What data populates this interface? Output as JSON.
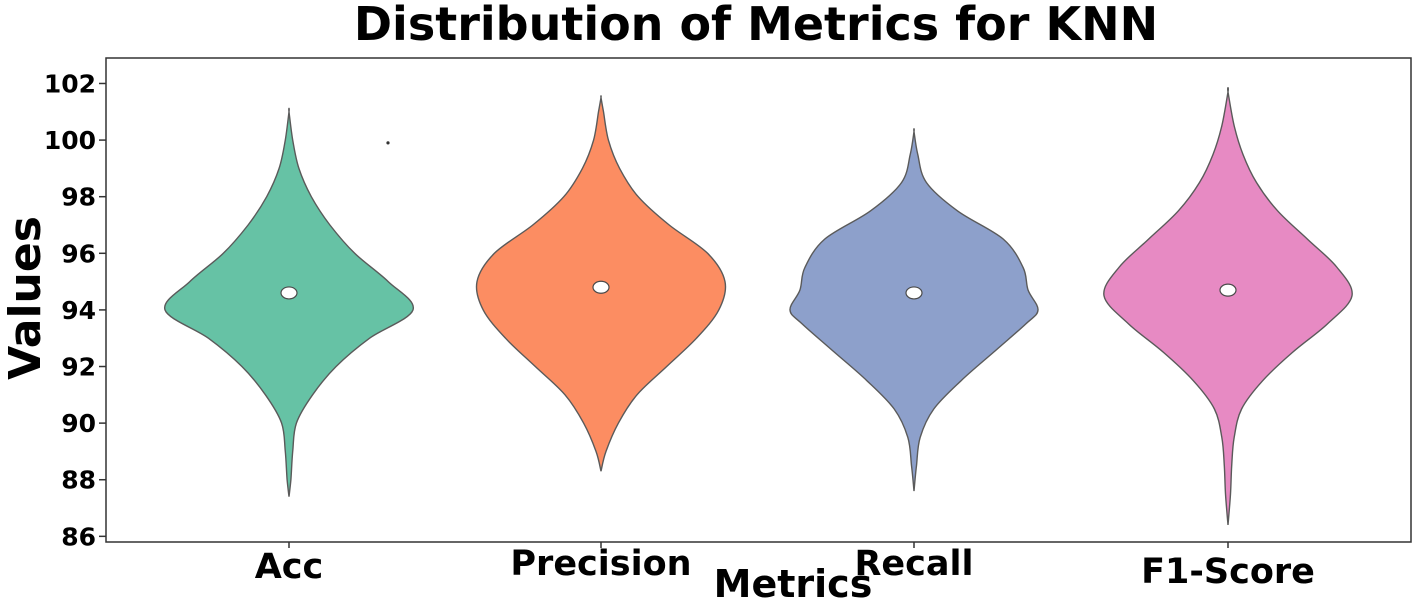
{
  "chart_data": {
    "type": "violin",
    "title": "Distribution of Metrics for KNN",
    "xlabel": "Metrics",
    "ylabel": "Values",
    "ylim": [
      85.8,
      102.9
    ],
    "yticks": [
      86,
      88,
      90,
      92,
      94,
      96,
      98,
      100,
      102
    ],
    "grid": false,
    "categories": [
      "Acc",
      "Precision",
      "Recall",
      "F1-Score"
    ],
    "series": [
      {
        "category": "Acc",
        "color": "#66c2a5",
        "median": 94.6,
        "min": 87.4,
        "max": 101.0,
        "density_profile": [
          [
            87.4,
            0.0
          ],
          [
            88.0,
            0.015
          ],
          [
            89.0,
            0.03
          ],
          [
            90.0,
            0.06
          ],
          [
            91.0,
            0.19
          ],
          [
            92.0,
            0.38
          ],
          [
            93.0,
            0.65
          ],
          [
            94.0,
            1.0
          ],
          [
            95.0,
            0.8
          ],
          [
            96.0,
            0.53
          ],
          [
            97.0,
            0.33
          ],
          [
            98.0,
            0.18
          ],
          [
            99.0,
            0.08
          ],
          [
            100.0,
            0.03
          ],
          [
            101.0,
            0.0
          ]
        ]
      },
      {
        "category": "Precision",
        "color": "#fc8d62",
        "median": 94.8,
        "min": 88.3,
        "max": 101.5,
        "density_profile": [
          [
            88.3,
            0.0
          ],
          [
            89.0,
            0.04
          ],
          [
            90.0,
            0.14
          ],
          [
            91.0,
            0.29
          ],
          [
            92.0,
            0.53
          ],
          [
            93.0,
            0.77
          ],
          [
            94.0,
            0.95
          ],
          [
            95.0,
            1.0
          ],
          [
            96.0,
            0.86
          ],
          [
            97.0,
            0.55
          ],
          [
            98.0,
            0.3
          ],
          [
            99.0,
            0.15
          ],
          [
            100.0,
            0.06
          ],
          [
            101.0,
            0.02
          ],
          [
            101.5,
            0.0
          ]
        ]
      },
      {
        "category": "Recall",
        "color": "#8da0cb",
        "median": 94.6,
        "min": 87.6,
        "max": 100.3,
        "density_profile": [
          [
            87.6,
            0.0
          ],
          [
            88.5,
            0.02
          ],
          [
            89.5,
            0.05
          ],
          [
            90.5,
            0.16
          ],
          [
            91.5,
            0.38
          ],
          [
            92.5,
            0.64
          ],
          [
            93.5,
            0.9
          ],
          [
            94.0,
            1.0
          ],
          [
            94.7,
            0.92
          ],
          [
            95.5,
            0.88
          ],
          [
            96.5,
            0.72
          ],
          [
            97.5,
            0.35
          ],
          [
            98.5,
            0.1
          ],
          [
            99.5,
            0.03
          ],
          [
            100.3,
            0.0
          ]
        ]
      },
      {
        "category": "F1-Score",
        "color": "#e78ac3",
        "median": 94.7,
        "min": 86.4,
        "max": 101.7,
        "density_profile": [
          [
            86.4,
            0.0
          ],
          [
            87.5,
            0.02
          ],
          [
            88.5,
            0.03
          ],
          [
            89.5,
            0.05
          ],
          [
            90.5,
            0.11
          ],
          [
            91.5,
            0.28
          ],
          [
            92.5,
            0.52
          ],
          [
            93.5,
            0.8
          ],
          [
            94.5,
            1.0
          ],
          [
            95.5,
            0.88
          ],
          [
            96.5,
            0.64
          ],
          [
            97.5,
            0.4
          ],
          [
            98.5,
            0.23
          ],
          [
            99.5,
            0.12
          ],
          [
            100.5,
            0.05
          ],
          [
            101.7,
            0.0
          ]
        ]
      }
    ],
    "outliers": [
      {
        "x": "Acc",
        "y": 99.9
      }
    ]
  }
}
